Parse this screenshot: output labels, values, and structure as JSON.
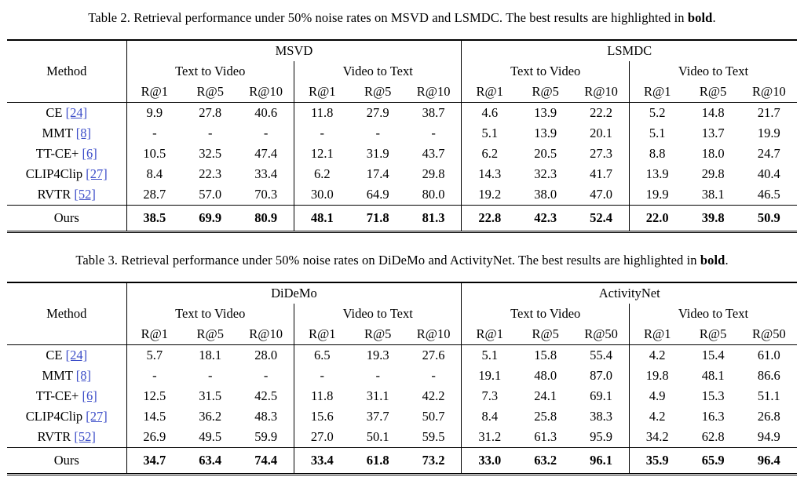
{
  "colors": {
    "background": "#ffffff",
    "text": "#000000",
    "citation": "#3b4cc8",
    "rule": "#000000"
  },
  "tables": [
    {
      "caption": {
        "prefix": "Table 2. Retrieval performance under 50% noise rates on MSVD and LSMDC. The best results are highlighted in ",
        "bold_word": "bold",
        "suffix": "."
      },
      "method_header": "Method",
      "groups": [
        {
          "name": "MSVD",
          "subgroups": [
            {
              "name": "Text to Video",
              "metrics": [
                "R@1",
                "R@5",
                "R@10"
              ]
            },
            {
              "name": "Video to Text",
              "metrics": [
                "R@1",
                "R@5",
                "R@10"
              ]
            }
          ]
        },
        {
          "name": "LSMDC",
          "subgroups": [
            {
              "name": "Text to Video",
              "metrics": [
                "R@1",
                "R@5",
                "R@10"
              ]
            },
            {
              "name": "Video to Text",
              "metrics": [
                "R@1",
                "R@5",
                "R@10"
              ]
            }
          ]
        }
      ],
      "rows": [
        {
          "method": "CE",
          "citation": "[24]",
          "values": [
            "9.9",
            "27.8",
            "40.6",
            "11.8",
            "27.9",
            "38.7",
            "4.6",
            "13.9",
            "22.2",
            "5.2",
            "14.8",
            "21.7"
          ]
        },
        {
          "method": "MMT",
          "citation": "[8]",
          "values": [
            "-",
            "-",
            "-",
            "-",
            "-",
            "-",
            "5.1",
            "13.9",
            "20.1",
            "5.1",
            "13.7",
            "19.9"
          ]
        },
        {
          "method": "TT-CE+",
          "citation": "[6]",
          "values": [
            "10.5",
            "32.5",
            "47.4",
            "12.1",
            "31.9",
            "43.7",
            "6.2",
            "20.5",
            "27.3",
            "8.8",
            "18.0",
            "24.7"
          ]
        },
        {
          "method": "CLIP4Clip",
          "citation": "[27]",
          "values": [
            "8.4",
            "22.3",
            "33.4",
            "6.2",
            "17.4",
            "29.8",
            "14.3",
            "32.3",
            "41.7",
            "13.9",
            "29.8",
            "40.4"
          ]
        },
        {
          "method": "RVTR",
          "citation": "[52]",
          "values": [
            "28.7",
            "57.0",
            "70.3",
            "30.0",
            "64.9",
            "80.0",
            "19.2",
            "38.0",
            "47.0",
            "19.9",
            "38.1",
            "46.5"
          ]
        }
      ],
      "ours_row": {
        "method": "Ours",
        "values": [
          "38.5",
          "69.9",
          "80.9",
          "48.1",
          "71.8",
          "81.3",
          "22.8",
          "42.3",
          "52.4",
          "22.0",
          "39.8",
          "50.9"
        ]
      }
    },
    {
      "caption": {
        "prefix": "Table 3. Retrieval performance under 50% noise rates on DiDeMo and ActivityNet. The best results are highlighted in ",
        "bold_word": "bold",
        "suffix": "."
      },
      "method_header": "Method",
      "groups": [
        {
          "name": "DiDeMo",
          "subgroups": [
            {
              "name": "Text to Video",
              "metrics": [
                "R@1",
                "R@5",
                "R@10"
              ]
            },
            {
              "name": "Video to Text",
              "metrics": [
                "R@1",
                "R@5",
                "R@10"
              ]
            }
          ]
        },
        {
          "name": "ActivityNet",
          "subgroups": [
            {
              "name": "Text to Video",
              "metrics": [
                "R@1",
                "R@5",
                "R@50"
              ]
            },
            {
              "name": "Video to Text",
              "metrics": [
                "R@1",
                "R@5",
                "R@50"
              ]
            }
          ]
        }
      ],
      "rows": [
        {
          "method": "CE",
          "citation": "[24]",
          "values": [
            "5.7",
            "18.1",
            "28.0",
            "6.5",
            "19.3",
            "27.6",
            "5.1",
            "15.8",
            "55.4",
            "4.2",
            "15.4",
            "61.0"
          ]
        },
        {
          "method": "MMT",
          "citation": "[8]",
          "values": [
            "-",
            "-",
            "-",
            "-",
            "-",
            "-",
            "19.1",
            "48.0",
            "87.0",
            "19.8",
            "48.1",
            "86.6"
          ]
        },
        {
          "method": "TT-CE+",
          "citation": "[6]",
          "values": [
            "12.5",
            "31.5",
            "42.5",
            "11.8",
            "31.1",
            "42.2",
            "7.3",
            "24.1",
            "69.1",
            "4.9",
            "15.3",
            "51.1"
          ]
        },
        {
          "method": "CLIP4Clip",
          "citation": "[27]",
          "values": [
            "14.5",
            "36.2",
            "48.3",
            "15.6",
            "37.7",
            "50.7",
            "8.4",
            "25.8",
            "38.3",
            "4.2",
            "16.3",
            "26.8"
          ]
        },
        {
          "method": "RVTR",
          "citation": "[52]",
          "values": [
            "26.9",
            "49.5",
            "59.9",
            "27.0",
            "50.1",
            "59.5",
            "31.2",
            "61.3",
            "95.9",
            "34.2",
            "62.8",
            "94.9"
          ]
        }
      ],
      "ours_row": {
        "method": "Ours",
        "values": [
          "34.7",
          "63.4",
          "74.4",
          "33.4",
          "61.8",
          "73.2",
          "33.0",
          "63.2",
          "96.1",
          "35.9",
          "65.9",
          "96.4"
        ]
      }
    }
  ]
}
